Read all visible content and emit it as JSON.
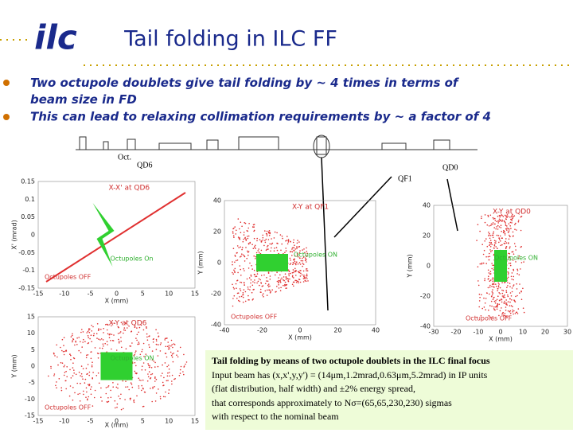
{
  "header": {
    "logo": "ilc",
    "title": "Tail folding in ILC FF"
  },
  "bullets": [
    "Two octupole doublets give tail folding by ~ 4 times in terms of beam size in FD",
    "This can lead to relaxing collimation requirements by ~ a factor of 4"
  ],
  "beamline": {
    "labels": [
      "Oct.",
      "QD6",
      "QF1",
      "QD0"
    ]
  },
  "plots": [
    {
      "title": "X-X' at QD6",
      "xlabel": "X (mm)",
      "ylabel": "X' (mrad)",
      "xticks": [
        "-15",
        "-10",
        "-5",
        "0",
        "5",
        "10",
        "15"
      ],
      "yticks": [
        "0.15",
        "0.1",
        "0.05",
        "0",
        "-0.05",
        "-0.1",
        "-0.15"
      ],
      "legend_on": "Octupoles On",
      "legend_off": "Octupoles OFF"
    },
    {
      "title": "X-Y at QD6",
      "xlabel": "X (mm)",
      "ylabel": "Y (mm)",
      "xticks": [
        "-15",
        "-10",
        "-5",
        "0",
        "5",
        "10",
        "15"
      ],
      "yticks": [
        "15",
        "10",
        "5",
        "0",
        "-5",
        "-10",
        "-15"
      ],
      "legend_on": "Octupoles ON",
      "legend_off": "Octupoles OFF"
    },
    {
      "title": "X-Y at QF1",
      "xlabel": "X (mm)",
      "ylabel": "Y (mm)",
      "xticks": [
        "-40",
        "-20",
        "0",
        "20",
        "40"
      ],
      "yticks": [
        "40",
        "20",
        "0",
        "-20",
        "-40"
      ],
      "legend_on": "Octupoles ON",
      "legend_off": "Octupoles OFF"
    },
    {
      "title": "X-Y at QD0",
      "xlabel": "X (mm)",
      "ylabel": "Y (mm)",
      "xticks": [
        "-30",
        "-20",
        "-10",
        "0",
        "10",
        "20",
        "30"
      ],
      "yticks": [
        "40",
        "20",
        "0",
        "-20",
        "-40"
      ],
      "legend_on": "Octupoles ON",
      "legend_off": "Octupoles OFF"
    }
  ],
  "caption": {
    "title": "Tail folding by means of two octupole doublets in the ILC final focus",
    "lines": [
      "Input beam has (x,x',y,y') = (14μm,1.2mrad,0.63μm,5.2mrad) in IP units",
      "(flat distribution, half width) and ±2% energy spread,",
      "that corresponds approximately to Nσ=(65,65,230,230) sigmas",
      "with respect to the nominal beam"
    ]
  }
}
